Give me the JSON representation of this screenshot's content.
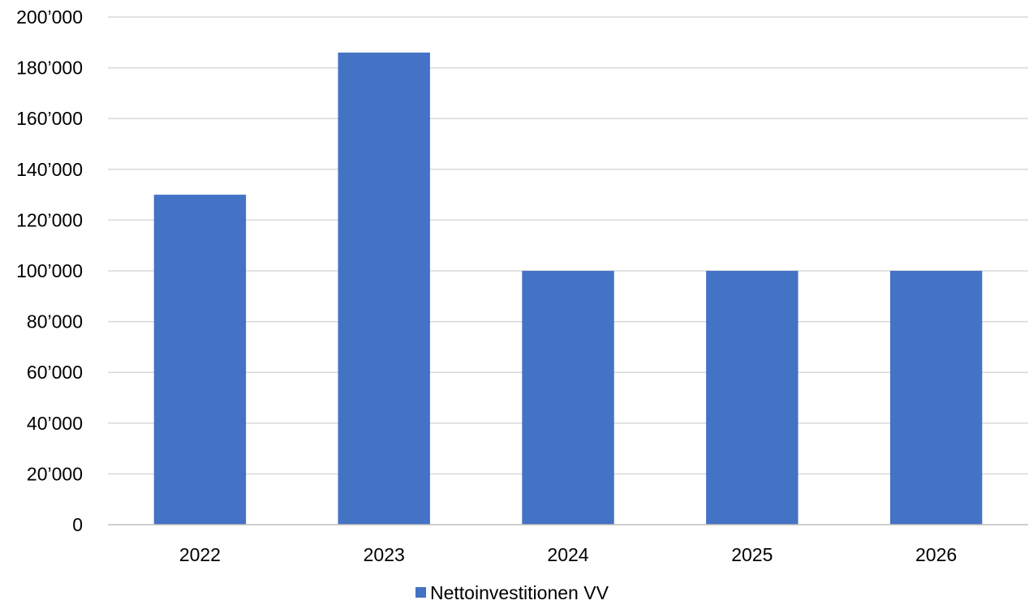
{
  "chart_data": {
    "type": "bar",
    "categories": [
      "2022",
      "2023",
      "2024",
      "2025",
      "2026"
    ],
    "series": [
      {
        "name": "Nettoinvestitionen VV",
        "values": [
          130000,
          186000,
          100000,
          100000,
          100000
        ],
        "color": "#4472C4"
      }
    ],
    "ylim": [
      0,
      200000
    ],
    "y_tick_step": 20000,
    "y_tick_labels": [
      "0",
      "20’000",
      "40’000",
      "60’000",
      "80’000",
      "100’000",
      "120’000",
      "140’000",
      "160’000",
      "180’000",
      "200’000"
    ],
    "grid": true,
    "grid_color": "#D9D9D9",
    "axis_color": "#BFBFBF",
    "legend_position": "bottom"
  }
}
